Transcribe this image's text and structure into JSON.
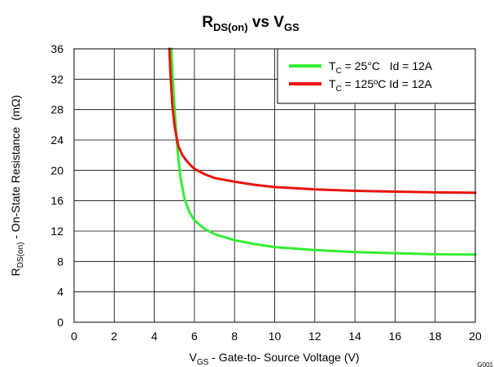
{
  "chart_data": {
    "type": "line",
    "title": {
      "main": "R",
      "sub": "DS(on)",
      "mid": " vs V",
      "sub2": "GS"
    },
    "xlabel": {
      "prefix": "V",
      "sub": "GS",
      "rest": " - Gate-to- Source Voltage (V)"
    },
    "ylabel": {
      "prefix": "R",
      "sub": "DS(on)",
      "rest": " - On-State Resistance  (mΩ)"
    },
    "xlim": [
      0,
      20
    ],
    "ylim": [
      0,
      36
    ],
    "xticks": [
      "0",
      "2",
      "4",
      "6",
      "8",
      "10",
      "12",
      "14",
      "16",
      "18",
      "20"
    ],
    "yticks": [
      "0",
      "4",
      "8",
      "12",
      "16",
      "20",
      "24",
      "28",
      "32",
      "36"
    ],
    "grid": true,
    "legend_position": "top-right",
    "figure_id": "G001",
    "series": [
      {
        "name": {
          "prefix": "T",
          "sub": "C",
          "rest": " = 25°C   Id = 12A"
        },
        "color": "#33ee33",
        "x": [
          4.85,
          4.9,
          5.0,
          5.1,
          5.2,
          5.3,
          5.5,
          5.75,
          6.0,
          6.5,
          7.0,
          8.0,
          9.0,
          10.0,
          12.0,
          14.0,
          16.0,
          18.0,
          20.0
        ],
        "y": [
          36,
          33,
          28.5,
          24.5,
          21.5,
          19.2,
          16.3,
          14.5,
          13.4,
          12.3,
          11.6,
          10.8,
          10.3,
          9.9,
          9.5,
          9.25,
          9.1,
          8.95,
          8.9
        ]
      },
      {
        "name": {
          "prefix": "T",
          "sub": "C",
          "rest": " = 125ºC Id = 12A"
        },
        "color": "#e8140c",
        "x": [
          4.75,
          4.8,
          4.9,
          5.0,
          5.1,
          5.2,
          5.4,
          5.6,
          5.8,
          6.0,
          6.5,
          7.0,
          8.0,
          9.0,
          10.0,
          12.0,
          14.0,
          16.0,
          18.0,
          20.0
        ],
        "y": [
          36,
          33,
          28.5,
          26,
          24.5,
          23.2,
          22.0,
          21.3,
          20.7,
          20.2,
          19.5,
          19.0,
          18.5,
          18.1,
          17.8,
          17.5,
          17.3,
          17.2,
          17.1,
          17.05
        ]
      }
    ]
  }
}
